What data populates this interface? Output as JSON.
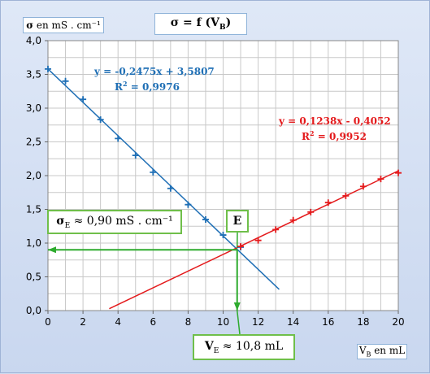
{
  "chart_data": {
    "type": "scatter",
    "title": "σ = f (VB)",
    "title_parts": {
      "main": "σ = f (V",
      "sub": "B",
      "close": ")"
    },
    "ylabel": "σ en mS . cm⁻¹",
    "ylabel_parts": {
      "sym": "σ",
      "rest": " en mS . cm⁻¹"
    },
    "xlabel": "VB en mL",
    "xlabel_parts": {
      "main": "V",
      "sub": "B",
      "rest": " en mL"
    },
    "xlim": [
      0,
      20
    ],
    "ylim": [
      0,
      4.0
    ],
    "x_ticks": [
      "0",
      "2",
      "4",
      "6",
      "8",
      "10",
      "12",
      "14",
      "16",
      "18",
      "20"
    ],
    "y_ticks": [
      "0,0",
      "0,5",
      "1,0",
      "1,5",
      "2,0",
      "2,5",
      "3,0",
      "3,5",
      "4,0"
    ],
    "grid": true,
    "series": [
      {
        "color": "#1f6fb5",
        "x": [
          0,
          1,
          2,
          3,
          4,
          5,
          6,
          7,
          8,
          9,
          10,
          11
        ],
        "y": [
          3.58,
          3.4,
          3.13,
          2.83,
          2.55,
          2.3,
          2.05,
          1.81,
          1.57,
          1.35,
          1.12,
          0.94
        ],
        "trendline": {
          "slope": -0.2475,
          "intercept": 3.5807,
          "x_range": [
            0,
            13.2
          ]
        },
        "equation": "y = -0,2475x + 3,5807",
        "r2": {
          "label": "R",
          "sup": "2",
          "value": " = 0,9976"
        }
      },
      {
        "color": "#e41a1c",
        "x": [
          11,
          12,
          13,
          14,
          15,
          16,
          17,
          18,
          19,
          20
        ],
        "y": [
          0.95,
          1.04,
          1.2,
          1.34,
          1.46,
          1.6,
          1.7,
          1.84,
          1.95,
          2.04
        ],
        "trendline": {
          "slope": 0.1238,
          "intercept": -0.4052,
          "x_range": [
            3.5,
            20
          ]
        },
        "equation": "y = 0,1238x - 0,4052",
        "r2": {
          "label": "R",
          "sup": "2",
          "value": " = 0,9952"
        }
      }
    ],
    "annotations": {
      "intersection": {
        "x": 10.8,
        "y": 0.9
      },
      "point_label": "E",
      "sigma_label": {
        "main": "σ",
        "sub": "E",
        "rest": " ≈ 0,90 mS . cm⁻¹"
      },
      "v_label": {
        "main": "V",
        "sub": "E",
        "rest": " ≈ 10,8 mL"
      },
      "guide_color": "#2eab2e"
    }
  }
}
